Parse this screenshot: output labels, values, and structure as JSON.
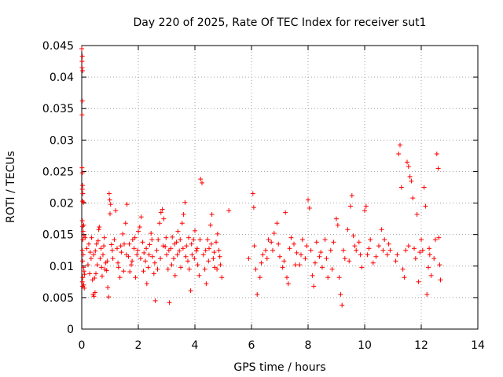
{
  "chart_data": {
    "type": "scatter",
    "title": "Day 220 of 2025, Rate Of TEC Index for receiver sut1",
    "xlabel": "GPS time / hours",
    "ylabel": "ROTI / TECUs",
    "xlim": [
      0,
      14
    ],
    "ylim": [
      0,
      0.045
    ],
    "x_ticks": [
      0,
      2,
      4,
      6,
      8,
      10,
      12,
      14
    ],
    "x_tick_labels": [
      "0",
      "2",
      "4",
      "6",
      "8",
      "10",
      "12",
      "14"
    ],
    "y_ticks": [
      0,
      0.005,
      0.01,
      0.015,
      0.02,
      0.025,
      0.03,
      0.035,
      0.04,
      0.045
    ],
    "y_tick_labels": [
      "0",
      "0.005",
      "0.01",
      "0.015",
      "0.02",
      "0.025",
      "0.03",
      "0.035",
      "0.04",
      "0.045"
    ],
    "grid": true,
    "marker": "+",
    "color": "#ff0000",
    "series": [
      {
        "name": "sut1",
        "points": [
          [
            0.0,
            0.0445
          ],
          [
            0.01,
            0.0425
          ],
          [
            0.01,
            0.0415
          ],
          [
            0.02,
            0.0433
          ],
          [
            0.03,
            0.041
          ],
          [
            0.02,
            0.0362
          ],
          [
            0.01,
            0.034
          ],
          [
            0.01,
            0.0256
          ],
          [
            0.02,
            0.0248
          ],
          [
            0.03,
            0.0228
          ],
          [
            0.02,
            0.0222
          ],
          [
            0.04,
            0.0215
          ],
          [
            0.03,
            0.0203
          ],
          [
            0.06,
            0.0201
          ],
          [
            0.02,
            0.0172
          ],
          [
            0.03,
            0.0163
          ],
          [
            0.05,
            0.0155
          ],
          [
            0.07,
            0.0165
          ],
          [
            0.08,
            0.0148
          ],
          [
            0.04,
            0.0142
          ],
          [
            0.02,
            0.0125
          ],
          [
            0.05,
            0.0118
          ],
          [
            0.03,
            0.0108
          ],
          [
            0.06,
            0.0098
          ],
          [
            0.08,
            0.0092
          ],
          [
            0.1,
            0.0087
          ],
          [
            0.04,
            0.0082
          ],
          [
            0.02,
            0.0075
          ],
          [
            0.07,
            0.007
          ],
          [
            0.03,
            0.0068
          ],
          [
            0.09,
            0.0065
          ],
          [
            0.18,
            0.0128
          ],
          [
            0.25,
            0.0135
          ],
          [
            0.3,
            0.0122
          ],
          [
            0.35,
            0.0145
          ],
          [
            0.42,
            0.0118
          ],
          [
            0.45,
            0.0081
          ],
          [
            0.38,
            0.0078
          ],
          [
            0.4,
            0.0055
          ],
          [
            0.43,
            0.0052
          ],
          [
            0.47,
            0.0058
          ],
          [
            0.5,
            0.0088
          ],
          [
            0.55,
            0.0102
          ],
          [
            0.58,
            0.014
          ],
          [
            0.6,
            0.0158
          ],
          [
            0.62,
            0.0162
          ],
          [
            0.65,
            0.0112
          ],
          [
            0.7,
            0.0098
          ],
          [
            0.72,
            0.0084
          ],
          [
            0.78,
            0.0132
          ],
          [
            0.8,
            0.0145
          ],
          [
            0.85,
            0.0105
          ],
          [
            0.88,
            0.0093
          ],
          [
            0.92,
            0.0066
          ],
          [
            0.95,
            0.0051
          ],
          [
            0.97,
            0.0215
          ],
          [
            0.99,
            0.0205
          ],
          [
            1.0,
            0.0183
          ],
          [
            1.02,
            0.0198
          ],
          [
            1.05,
            0.0134
          ],
          [
            1.1,
            0.0112
          ],
          [
            1.2,
            0.0188
          ],
          [
            1.25,
            0.0128
          ],
          [
            1.3,
            0.0098
          ],
          [
            1.35,
            0.0082
          ],
          [
            1.4,
            0.0122
          ],
          [
            1.45,
            0.0151
          ],
          [
            1.5,
            0.0135
          ],
          [
            1.55,
            0.0168
          ],
          [
            1.6,
            0.0198
          ],
          [
            1.65,
            0.0115
          ],
          [
            1.7,
            0.0091
          ],
          [
            1.75,
            0.0102
          ],
          [
            1.8,
            0.0142
          ],
          [
            1.85,
            0.0128
          ],
          [
            1.9,
            0.0082
          ],
          [
            1.95,
            0.0118
          ],
          [
            2.0,
            0.0155
          ],
          [
            2.05,
            0.0162
          ],
          [
            2.1,
            0.0178
          ],
          [
            2.15,
            0.0138
          ],
          [
            2.2,
            0.0121
          ],
          [
            2.25,
            0.0108
          ],
          [
            2.3,
            0.0072
          ],
          [
            2.35,
            0.0098
          ],
          [
            2.4,
            0.0134
          ],
          [
            2.45,
            0.0152
          ],
          [
            2.5,
            0.0115
          ],
          [
            2.55,
            0.0088
          ],
          [
            2.6,
            0.0045
          ],
          [
            2.65,
            0.0125
          ],
          [
            2.7,
            0.0142
          ],
          [
            2.75,
            0.0168
          ],
          [
            2.8,
            0.0185
          ],
          [
            2.85,
            0.019
          ],
          [
            2.9,
            0.0175
          ],
          [
            2.95,
            0.0131
          ],
          [
            3.0,
            0.0118
          ],
          [
            3.05,
            0.0095
          ],
          [
            3.1,
            0.0042
          ],
          [
            3.15,
            0.0128
          ],
          [
            3.2,
            0.0146
          ],
          [
            3.25,
            0.0112
          ],
          [
            3.3,
            0.0085
          ],
          [
            3.35,
            0.0138
          ],
          [
            3.4,
            0.0155
          ],
          [
            3.45,
            0.0124
          ],
          [
            3.5,
            0.0098
          ],
          [
            3.55,
            0.0168
          ],
          [
            3.6,
            0.0182
          ],
          [
            3.65,
            0.0201
          ],
          [
            3.7,
            0.0132
          ],
          [
            3.75,
            0.0108
          ],
          [
            3.8,
            0.0095
          ],
          [
            3.85,
            0.0061
          ],
          [
            3.9,
            0.0118
          ],
          [
            3.95,
            0.0142
          ],
          [
            4.0,
            0.0156
          ],
          [
            4.05,
            0.0124
          ],
          [
            4.1,
            0.0102
          ],
          [
            4.15,
            0.0085
          ],
          [
            4.2,
            0.0238
          ],
          [
            4.25,
            0.0232
          ],
          [
            4.3,
            0.0118
          ],
          [
            4.35,
            0.0095
          ],
          [
            4.4,
            0.0072
          ],
          [
            4.45,
            0.0142
          ],
          [
            4.5,
            0.0128
          ],
          [
            4.55,
            0.0165
          ],
          [
            4.6,
            0.0182
          ],
          [
            4.65,
            0.0112
          ],
          [
            4.7,
            0.0098
          ],
          [
            4.75,
            0.0138
          ],
          [
            4.8,
            0.0151
          ],
          [
            4.85,
            0.0125
          ],
          [
            4.9,
            0.0102
          ],
          [
            4.95,
            0.0082
          ],
          [
            5.2,
            0.0188
          ],
          [
            5.9,
            0.0112
          ],
          [
            6.05,
            0.0215
          ],
          [
            6.08,
            0.0193
          ],
          [
            6.1,
            0.0132
          ],
          [
            6.15,
            0.0095
          ],
          [
            6.2,
            0.0055
          ],
          [
            6.3,
            0.0082
          ],
          [
            6.4,
            0.0118
          ],
          [
            6.5,
            0.0125
          ],
          [
            6.6,
            0.0142
          ],
          [
            6.7,
            0.0138
          ],
          [
            6.8,
            0.0152
          ],
          [
            6.9,
            0.0168
          ],
          [
            7.0,
            0.0115
          ],
          [
            7.1,
            0.0098
          ],
          [
            7.2,
            0.0185
          ],
          [
            7.25,
            0.0082
          ],
          [
            7.3,
            0.0072
          ],
          [
            7.4,
            0.0145
          ],
          [
            7.5,
            0.0135
          ],
          [
            7.6,
            0.0121
          ],
          [
            7.7,
            0.0102
          ],
          [
            7.8,
            0.0142
          ],
          [
            7.9,
            0.0112
          ],
          [
            8.0,
            0.0205
          ],
          [
            8.05,
            0.0192
          ],
          [
            8.1,
            0.0125
          ],
          [
            8.15,
            0.0085
          ],
          [
            8.2,
            0.0068
          ],
          [
            8.3,
            0.0138
          ],
          [
            8.4,
            0.0115
          ],
          [
            8.5,
            0.0098
          ],
          [
            8.6,
            0.0142
          ],
          [
            8.7,
            0.0082
          ],
          [
            8.8,
            0.0125
          ],
          [
            8.9,
            0.0138
          ],
          [
            9.0,
            0.0175
          ],
          [
            9.05,
            0.0165
          ],
          [
            9.1,
            0.0082
          ],
          [
            9.15,
            0.0055
          ],
          [
            9.2,
            0.0038
          ],
          [
            9.3,
            0.0112
          ],
          [
            9.4,
            0.0158
          ],
          [
            9.5,
            0.0195
          ],
          [
            9.55,
            0.0212
          ],
          [
            9.6,
            0.0148
          ],
          [
            9.7,
            0.0125
          ],
          [
            9.8,
            0.0138
          ],
          [
            9.9,
            0.0098
          ],
          [
            10.0,
            0.0188
          ],
          [
            10.05,
            0.0195
          ],
          [
            10.1,
            0.0118
          ],
          [
            10.2,
            0.0142
          ],
          [
            10.3,
            0.0105
          ],
          [
            10.5,
            0.0132
          ],
          [
            10.6,
            0.0158
          ],
          [
            10.7,
            0.0142
          ],
          [
            10.8,
            0.0118
          ],
          [
            10.9,
            0.0125
          ],
          [
            11.1,
            0.0108
          ],
          [
            11.2,
            0.0278
          ],
          [
            11.25,
            0.0292
          ],
          [
            11.3,
            0.0225
          ],
          [
            11.35,
            0.0095
          ],
          [
            11.4,
            0.0082
          ],
          [
            11.45,
            0.0125
          ],
          [
            11.5,
            0.0265
          ],
          [
            11.55,
            0.0258
          ],
          [
            11.6,
            0.0242
          ],
          [
            11.65,
            0.0235
          ],
          [
            11.7,
            0.0208
          ],
          [
            11.75,
            0.0128
          ],
          [
            11.8,
            0.0112
          ],
          [
            11.85,
            0.0182
          ],
          [
            11.9,
            0.0075
          ],
          [
            12.0,
            0.0142
          ],
          [
            12.05,
            0.0125
          ],
          [
            12.1,
            0.0225
          ],
          [
            12.15,
            0.0195
          ],
          [
            12.2,
            0.0055
          ],
          [
            12.25,
            0.0098
          ],
          [
            12.3,
            0.0118
          ],
          [
            12.35,
            0.0085
          ],
          [
            12.5,
            0.0142
          ],
          [
            12.55,
            0.0278
          ],
          [
            12.6,
            0.0255
          ],
          [
            12.62,
            0.0145
          ],
          [
            12.65,
            0.0102
          ],
          [
            12.68,
            0.0078
          ],
          [
            0.12,
            0.0145
          ],
          [
            0.22,
            0.0102
          ],
          [
            0.28,
            0.0088
          ],
          [
            0.33,
            0.0112
          ],
          [
            0.48,
            0.0124
          ],
          [
            0.52,
            0.0135
          ],
          [
            0.68,
            0.0128
          ],
          [
            0.75,
            0.0118
          ],
          [
            0.82,
            0.0095
          ],
          [
            0.9,
            0.0108
          ],
          [
            1.08,
            0.0125
          ],
          [
            1.15,
            0.0142
          ],
          [
            1.28,
            0.0105
          ],
          [
            1.38,
            0.0132
          ],
          [
            1.48,
            0.0092
          ],
          [
            1.58,
            0.0118
          ],
          [
            1.68,
            0.0135
          ],
          [
            1.78,
            0.0108
          ],
          [
            1.88,
            0.0145
          ],
          [
            1.98,
            0.0125
          ],
          [
            2.08,
            0.0112
          ],
          [
            2.18,
            0.0092
          ],
          [
            2.28,
            0.0128
          ],
          [
            2.38,
            0.0118
          ],
          [
            2.48,
            0.0142
          ],
          [
            2.58,
            0.0105
          ],
          [
            2.68,
            0.0095
          ],
          [
            2.78,
            0.0112
          ],
          [
            2.88,
            0.0132
          ],
          [
            2.98,
            0.0145
          ],
          [
            3.08,
            0.0125
          ],
          [
            3.18,
            0.0102
          ],
          [
            3.28,
            0.0135
          ],
          [
            3.38,
            0.0118
          ],
          [
            3.48,
            0.0142
          ],
          [
            3.58,
            0.0128
          ],
          [
            3.68,
            0.0115
          ],
          [
            3.78,
            0.0145
          ],
          [
            3.88,
            0.0135
          ],
          [
            3.98,
            0.0112
          ],
          [
            4.08,
            0.0128
          ],
          [
            4.18,
            0.0142
          ],
          [
            4.38,
            0.0125
          ],
          [
            4.48,
            0.0108
          ],
          [
            4.58,
            0.0135
          ],
          [
            4.68,
            0.0122
          ],
          [
            4.78,
            0.0095
          ],
          [
            4.88,
            0.0115
          ],
          [
            6.35,
            0.0105
          ],
          [
            6.55,
            0.0112
          ],
          [
            6.75,
            0.0125
          ],
          [
            6.95,
            0.0135
          ],
          [
            7.15,
            0.0108
          ],
          [
            7.35,
            0.0128
          ],
          [
            7.55,
            0.0102
          ],
          [
            7.75,
            0.0118
          ],
          [
            7.95,
            0.0132
          ],
          [
            8.25,
            0.0105
          ],
          [
            8.45,
            0.0122
          ],
          [
            8.65,
            0.0112
          ],
          [
            8.85,
            0.0095
          ],
          [
            9.25,
            0.0125
          ],
          [
            9.45,
            0.0108
          ],
          [
            9.65,
            0.0132
          ],
          [
            9.85,
            0.0118
          ],
          [
            10.15,
            0.0128
          ],
          [
            10.4,
            0.0115
          ],
          [
            10.65,
            0.0125
          ],
          [
            10.85,
            0.0135
          ],
          [
            11.15,
            0.0118
          ],
          [
            11.55,
            0.0132
          ],
          [
            11.95,
            0.0122
          ],
          [
            12.28,
            0.0128
          ],
          [
            12.45,
            0.0112
          ]
        ]
      }
    ]
  }
}
